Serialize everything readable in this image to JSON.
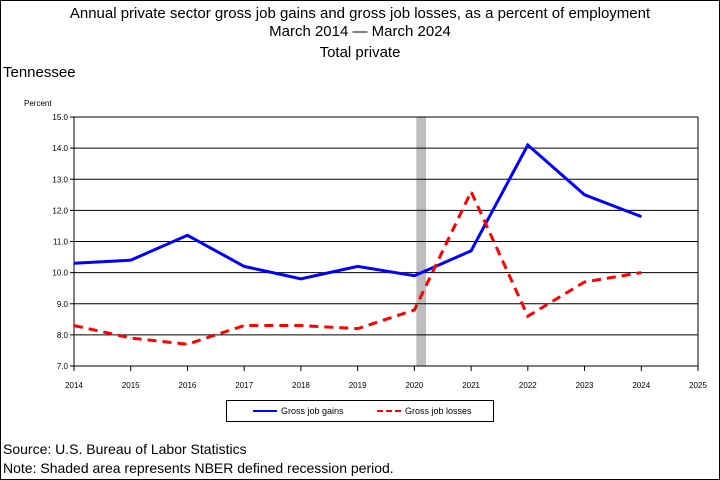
{
  "chart_data": {
    "type": "line",
    "title": [
      "Annual private sector gross job gains and gross job losses, as a percent of employment",
      "March 2014 — March 2024",
      "Total private"
    ],
    "region": "Tennessee",
    "ylabel": "Percent",
    "xlabel": "",
    "ylim": [
      7.0,
      15.0
    ],
    "xlim": [
      2014,
      2025
    ],
    "y_ticks": [
      "7.0",
      "8.0",
      "9.0",
      "10.0",
      "11.0",
      "12.0",
      "13.0",
      "14.0",
      "15.0"
    ],
    "x_ticks": [
      "2014",
      "2015",
      "2016",
      "2017",
      "2018",
      "2019",
      "2020",
      "2021",
      "2022",
      "2023",
      "2024",
      "2025"
    ],
    "grid": "horizontal",
    "recession_shading": {
      "start": 2020.0,
      "end": 2020.17
    },
    "series": [
      {
        "name": "Gross job gains",
        "color": "#0000ff",
        "style": "solid",
        "x": [
          2014,
          2015,
          2016,
          2017,
          2018,
          2019,
          2020,
          2021,
          2022,
          2023,
          2024
        ],
        "values": [
          10.3,
          10.4,
          11.2,
          10.2,
          9.8,
          10.2,
          9.9,
          10.7,
          14.1,
          12.5,
          11.8
        ]
      },
      {
        "name": "Gross job losses",
        "color": "#ff0000",
        "style": "dashed",
        "x": [
          2014,
          2015,
          2016,
          2017,
          2018,
          2019,
          2020,
          2021,
          2022,
          2023,
          2024
        ],
        "values": [
          8.3,
          7.9,
          7.7,
          8.3,
          8.3,
          8.2,
          8.8,
          12.6,
          8.6,
          9.7,
          10.0
        ]
      }
    ],
    "legend_placement": "bottom-center"
  },
  "footer": {
    "source": "Source: U.S. Bureau of Labor Statistics",
    "note": "Note: Shaded area represents NBER defined recession period."
  }
}
